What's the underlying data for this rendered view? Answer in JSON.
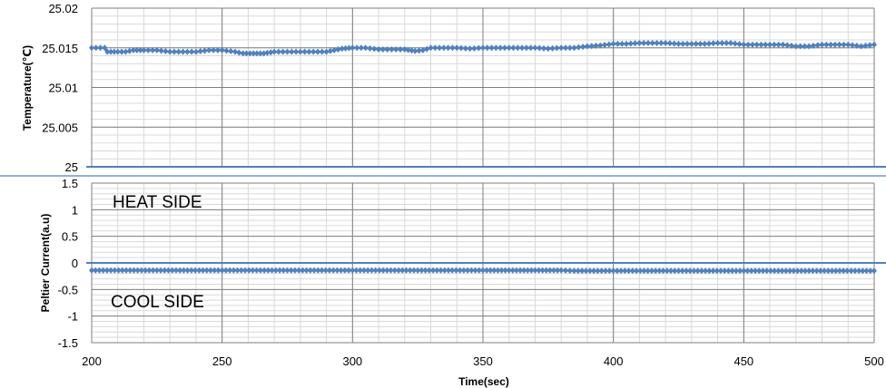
{
  "chart_data": [
    {
      "type": "line",
      "ylabel": "Temperature(℃)",
      "xlim": [
        200,
        500
      ],
      "ylim": [
        25,
        25.02
      ],
      "yticks": [
        "25.02",
        "25.015",
        "25.01",
        "25.005",
        "25"
      ],
      "grid": true,
      "marker": "diamond",
      "series": [
        {
          "color": "#4F81BD",
          "x": [
            200,
            205,
            206,
            210,
            213,
            216,
            220,
            225,
            230,
            235,
            240,
            245,
            250,
            255,
            258,
            262,
            266,
            270,
            275,
            280,
            285,
            290,
            293,
            296,
            300,
            305,
            310,
            315,
            320,
            324,
            327,
            330,
            335,
            340,
            345,
            350,
            355,
            360,
            365,
            370,
            375,
            380,
            385,
            390,
            395,
            400,
            405,
            410,
            415,
            420,
            425,
            430,
            435,
            440,
            445,
            450,
            455,
            460,
            465,
            470,
            475,
            480,
            485,
            490,
            495,
            500
          ],
          "values": [
            25.015,
            25.015,
            25.0145,
            25.0145,
            25.0145,
            25.0147,
            25.0147,
            25.0147,
            25.0145,
            25.0145,
            25.0145,
            25.0147,
            25.0147,
            25.0145,
            25.0143,
            25.0143,
            25.0143,
            25.0145,
            25.0145,
            25.0145,
            25.0145,
            25.0145,
            25.0147,
            25.0149,
            25.015,
            25.015,
            25.0148,
            25.0148,
            25.0148,
            25.0146,
            25.0147,
            25.015,
            25.015,
            25.015,
            25.0149,
            25.015,
            25.015,
            25.015,
            25.015,
            25.015,
            25.0149,
            25.015,
            25.015,
            25.0152,
            25.0153,
            25.0155,
            25.0155,
            25.0156,
            25.0156,
            25.0156,
            25.0155,
            25.0155,
            25.0155,
            25.0156,
            25.0156,
            25.0154,
            25.0154,
            25.0154,
            25.0154,
            25.0152,
            25.0152,
            25.0154,
            25.0154,
            25.0154,
            25.0152,
            25.0154
          ]
        },
        {
          "color": "#4F81BD",
          "marker": "none",
          "x": [
            200,
            500
          ],
          "values": [
            25,
            25
          ]
        }
      ]
    },
    {
      "type": "line",
      "xlabel": "Time(sec)",
      "ylabel": "Peltier Current(a.u)",
      "xlim": [
        200,
        500
      ],
      "ylim": [
        -1.5,
        1.5
      ],
      "xticks": [
        "200",
        "250",
        "300",
        "350",
        "400",
        "450",
        "500"
      ],
      "yticks": [
        "1.5",
        "1",
        "0.5",
        "0",
        "-0.5",
        "-1",
        "-1.5"
      ],
      "grid": true,
      "annotations": [
        "HEAT SIDE",
        "COOL SIDE"
      ],
      "series": [
        {
          "color": "#4F81BD",
          "marker": "diamond",
          "x": [
            200,
            250,
            300,
            350,
            380,
            385,
            400,
            450,
            500
          ],
          "values": [
            -0.14,
            -0.14,
            -0.14,
            -0.14,
            -0.14,
            -0.15,
            -0.15,
            -0.15,
            -0.15
          ]
        },
        {
          "color": "#4F81BD",
          "marker": "none",
          "x": [
            200,
            500
          ],
          "values": [
            0,
            0
          ]
        }
      ]
    }
  ]
}
